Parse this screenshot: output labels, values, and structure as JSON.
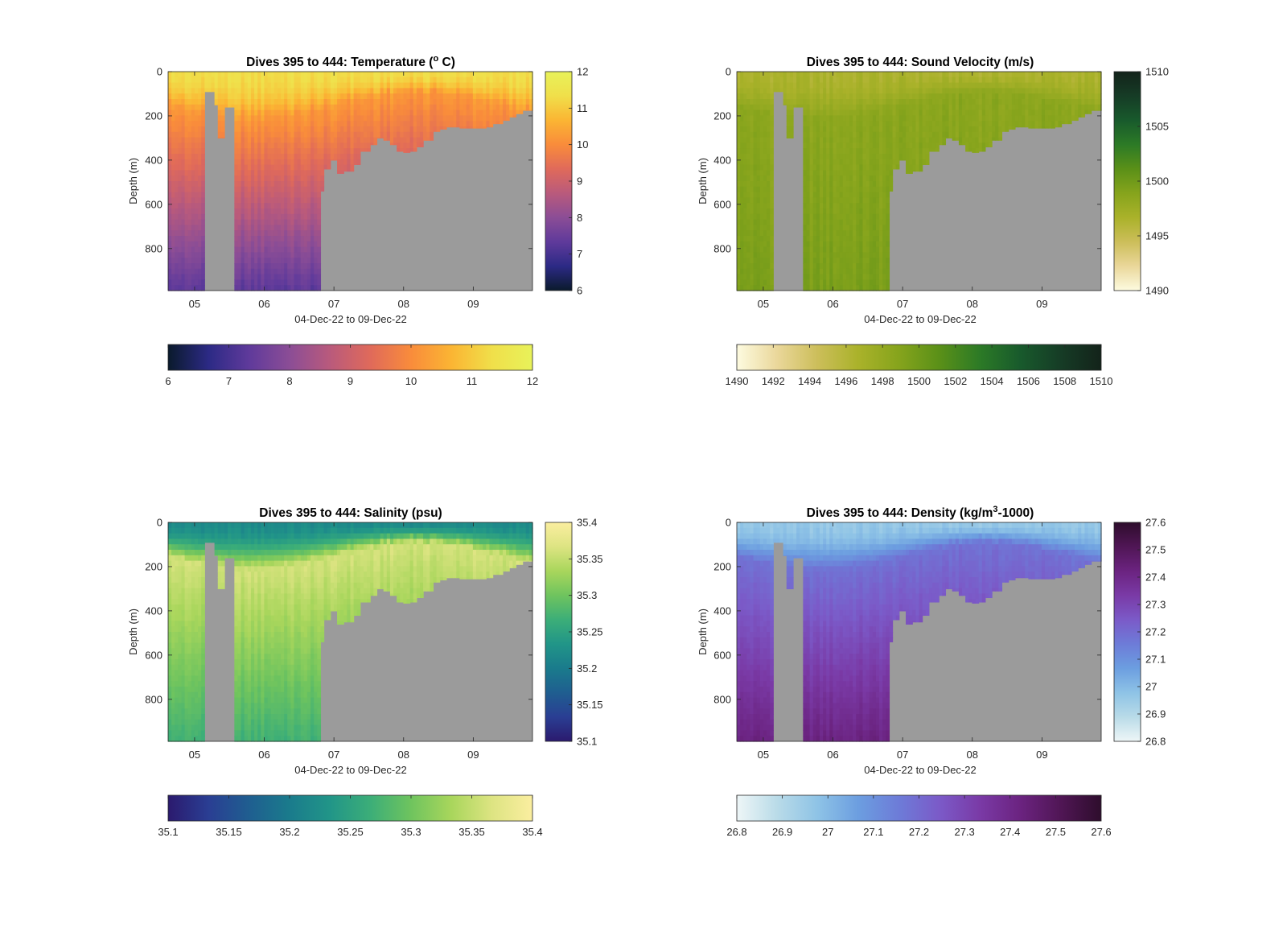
{
  "figure": {
    "background": "#ffffff",
    "terrain_color": "#9b9b9b"
  },
  "chart_data": [
    {
      "type": "heatmap",
      "id": "temperature",
      "title_text": "Dives 395 to 444: Temperature (",
      "title_sup": "o",
      "title_end": " C)",
      "xlabel": "04-Dec-22 to 09-Dec-22",
      "ylabel": "Depth (m)",
      "x_tick_labels": [
        "05",
        "06",
        "07",
        "08",
        "09"
      ],
      "x_ticks": [
        5.0,
        6.0,
        7.0,
        8.0,
        9.0
      ],
      "xlim": [
        4.62,
        9.85
      ],
      "y_ticks": [
        0,
        200,
        400,
        600,
        800
      ],
      "ylim": [
        0,
        990
      ],
      "colorbar": {
        "ticks": [
          "6",
          "7",
          "8",
          "9",
          "10",
          "11",
          "12"
        ],
        "range": [
          6,
          12
        ]
      },
      "hcolorbar": {
        "ticks": [
          "6",
          "7",
          "8",
          "9",
          "10",
          "11",
          "12"
        ],
        "range": [
          6,
          12
        ]
      },
      "colormap": [
        "#0a1a2c",
        "#2c2a85",
        "#5f3a9b",
        "#8b4d96",
        "#b95a7c",
        "#e06a5a",
        "#f98c3b",
        "#fbb533",
        "#f0df4a",
        "#e8f25a"
      ],
      "value_surface": 11.3,
      "value_mid": 10.2,
      "value_deep": 7.3
    },
    {
      "type": "heatmap",
      "id": "sound_velocity",
      "title_text": "Dives 395 to 444: Sound Velocity (m/s)",
      "title_sup": "",
      "title_end": "",
      "xlabel": "04-Dec-22 to 09-Dec-22",
      "ylabel": "Depth (m)",
      "x_tick_labels": [
        "05",
        "06",
        "07",
        "08",
        "09"
      ],
      "x_ticks": [
        5.0,
        6.0,
        7.0,
        8.0,
        9.0
      ],
      "xlim": [
        4.62,
        9.85
      ],
      "y_ticks": [
        0,
        200,
        400,
        600,
        800
      ],
      "ylim": [
        0,
        990
      ],
      "colorbar": {
        "ticks": [
          "1490",
          "1495",
          "1500",
          "1505",
          "1510"
        ],
        "range": [
          1490,
          1510
        ]
      },
      "hcolorbar": {
        "ticks": [
          "1490",
          "1492",
          "1494",
          "1496",
          "1498",
          "1500",
          "1502",
          "1504",
          "1506",
          "1508",
          "1510"
        ],
        "range": [
          1490,
          1510
        ]
      },
      "colormap": [
        "#fdfbe0",
        "#ead79a",
        "#ccbe5a",
        "#aab22a",
        "#86a41c",
        "#5a9018",
        "#2c7a26",
        "#185a2c",
        "#163c26",
        "#13231a"
      ],
      "value_surface": 1496.5,
      "value_mid": 1498.5,
      "value_deep": 1499.5
    },
    {
      "type": "heatmap",
      "id": "salinity",
      "title_text": "Dives 395 to 444: Salinity (psu)",
      "title_sup": "",
      "title_end": "",
      "xlabel": "04-Dec-22 to 09-Dec-22",
      "ylabel": "Depth (m)",
      "x_tick_labels": [
        "05",
        "06",
        "07",
        "08",
        "09"
      ],
      "x_ticks": [
        5.0,
        6.0,
        7.0,
        8.0,
        9.0
      ],
      "xlim": [
        4.62,
        9.85
      ],
      "y_ticks": [
        0,
        200,
        400,
        600,
        800
      ],
      "ylim": [
        0,
        990
      ],
      "colorbar": {
        "ticks": [
          "35.1",
          "35.15",
          "35.2",
          "35.25",
          "35.3",
          "35.35",
          "35.4"
        ],
        "range": [
          35.1,
          35.4
        ]
      },
      "hcolorbar": {
        "ticks": [
          "35.1",
          "35.15",
          "35.2",
          "35.25",
          "35.3",
          "35.35",
          "35.4"
        ],
        "range": [
          35.1,
          35.4
        ]
      },
      "colormap": [
        "#2b1a6e",
        "#2a3e93",
        "#1f5e90",
        "#1a7b8c",
        "#219588",
        "#3cae78",
        "#6fc45e",
        "#a9d65c",
        "#dde482",
        "#fbeea0"
      ],
      "value_surface": 35.22,
      "value_mid": 35.36,
      "value_deep": 35.27
    },
    {
      "type": "heatmap",
      "id": "density",
      "title_text": "Dives 395 to 444: Density (kg/m",
      "title_sup": "3",
      "title_end": "-1000)",
      "xlabel": "04-Dec-22 to 09-Dec-22",
      "ylabel": "Depth (m)",
      "x_tick_labels": [
        "05",
        "06",
        "07",
        "08",
        "09"
      ],
      "x_ticks": [
        5.0,
        6.0,
        7.0,
        8.0,
        9.0
      ],
      "xlim": [
        4.62,
        9.85
      ],
      "y_ticks": [
        0,
        200,
        400,
        600,
        800
      ],
      "ylim": [
        0,
        990
      ],
      "colorbar": {
        "ticks": [
          "26.8",
          "26.9",
          "27",
          "27.1",
          "27.2",
          "27.3",
          "27.4",
          "27.5",
          "27.6"
        ],
        "range": [
          26.8,
          27.6
        ]
      },
      "hcolorbar": {
        "ticks": [
          "26.8",
          "26.9",
          "27",
          "27.1",
          "27.2",
          "27.3",
          "27.4",
          "27.5",
          "27.6"
        ],
        "range": [
          26.8,
          27.6
        ]
      },
      "colormap": [
        "#eef6f7",
        "#b9dbe8",
        "#8ec3e6",
        "#6c9ee0",
        "#6d7cd8",
        "#7b5ac8",
        "#7a3aa6",
        "#6b2380",
        "#501655",
        "#2e0d2c"
      ],
      "value_surface": 26.96,
      "value_mid": 27.18,
      "value_deep": 27.42
    }
  ],
  "seafloor_profile": {
    "days": [
      4.62,
      5.13,
      5.15,
      5.27,
      5.28,
      5.34,
      5.35,
      5.42,
      5.43,
      5.55,
      5.56,
      6.79,
      6.8,
      6.85,
      6.86,
      6.95,
      6.96,
      7.05,
      7.06,
      7.15,
      7.16,
      7.25,
      7.26,
      7.4,
      7.5,
      7.6,
      7.7,
      7.8,
      7.9,
      8.0,
      8.1,
      8.2,
      8.3,
      8.4,
      8.5,
      8.6,
      8.7,
      8.8,
      9.0,
      9.2,
      9.3,
      9.4,
      9.5,
      9.6,
      9.7,
      9.85
    ],
    "bottom_depth_m": [
      990,
      990,
      90,
      90,
      150,
      150,
      300,
      300,
      160,
      160,
      990,
      990,
      540,
      540,
      440,
      440,
      400,
      400,
      460,
      460,
      450,
      450,
      420,
      360,
      330,
      300,
      310,
      330,
      360,
      365,
      360,
      340,
      310,
      270,
      260,
      250,
      250,
      255,
      255,
      250,
      235,
      220,
      205,
      190,
      175,
      160
    ]
  }
}
